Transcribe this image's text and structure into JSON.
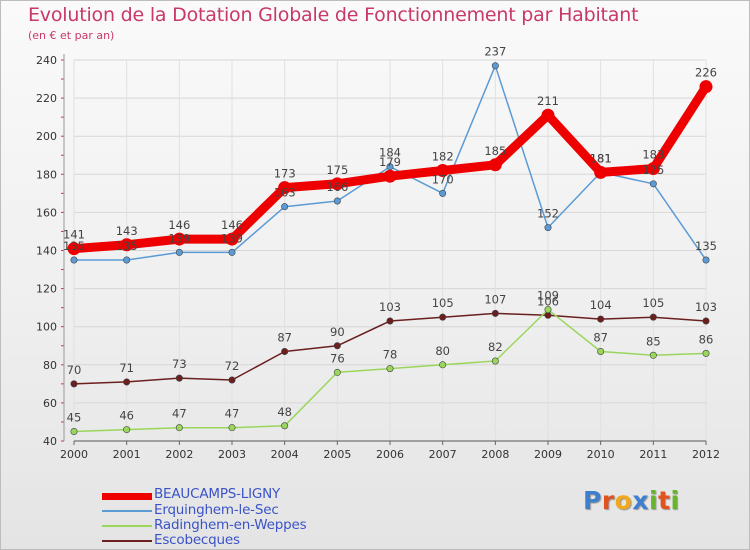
{
  "chart_data": {
    "type": "line",
    "title": "Evolution de la Dotation Globale de Fonctionnement par Habitant",
    "subtitle": "(en € et par an)",
    "xlabel": "",
    "ylabel": "",
    "x": [
      "2000",
      "2001",
      "2002",
      "2003",
      "2004",
      "2005",
      "2006",
      "2007",
      "2008",
      "2009",
      "2010",
      "2011",
      "2012"
    ],
    "ylim": [
      40,
      240
    ],
    "yticks": [
      40,
      60,
      80,
      100,
      120,
      140,
      160,
      180,
      200,
      220,
      240
    ],
    "grid": true,
    "legend_position": "bottom-left",
    "series": [
      {
        "name": "Escobecques",
        "color": "#6b1f1f",
        "values": [
          70,
          71,
          73,
          72,
          87,
          90,
          103,
          105,
          107,
          106,
          104,
          105,
          103
        ],
        "labels": [
          "70",
          "71",
          "73",
          "72",
          "87",
          "90",
          "103",
          "105",
          "107",
          "106",
          "104",
          "105",
          "103"
        ]
      },
      {
        "name": "Radinghem-en-Weppes",
        "color": "#9ad65c",
        "values": [
          45,
          46,
          47,
          47,
          48,
          76,
          78,
          80,
          82,
          109,
          87,
          85,
          86
        ],
        "labels": [
          "45",
          "46",
          "47",
          "47",
          "48",
          "76",
          "78",
          "80",
          "82",
          "109",
          "87",
          "85",
          "86"
        ]
      },
      {
        "name": "Erquinghem-le-Sec",
        "color": "#5b9bd5",
        "values": [
          135,
          135,
          139,
          139,
          163,
          166,
          184,
          170,
          237,
          152,
          181,
          175,
          135
        ],
        "labels": [
          "135",
          "135",
          "139",
          "139",
          "163",
          "166",
          "184",
          "170",
          "237",
          "152",
          "181",
          "175",
          "135"
        ]
      },
      {
        "name": "BEAUCAMPS-LIGNY",
        "color": "#ee0000",
        "values": [
          141,
          143,
          146,
          146,
          173,
          175,
          179,
          182,
          185,
          211,
          181,
          183,
          226
        ],
        "labels": [
          "141",
          "143",
          "146",
          "146",
          "173",
          "175",
          "179",
          "182",
          "185",
          "211",
          "181",
          "183",
          "226"
        ]
      }
    ]
  },
  "legend": {
    "items": [
      {
        "label": "BEAUCAMPS-LIGNY",
        "color": "#ee0000"
      },
      {
        "label": "Erquinghem-le-Sec",
        "color": "#5b9bd5"
      },
      {
        "label": "Radinghem-en-Weppes",
        "color": "#9ad65c"
      },
      {
        "label": "Escobecques",
        "color": "#6b1f1f"
      }
    ]
  },
  "logo": {
    "text": "Proxiti",
    "letters": [
      {
        "ch": "P",
        "color": "#3f7fd0"
      },
      {
        "ch": "r",
        "color": "#e0531f"
      },
      {
        "ch": "o",
        "color": "#f2a81d"
      },
      {
        "ch": "x",
        "color": "#3f7fd0"
      },
      {
        "ch": "i",
        "color": "#6ab42d"
      },
      {
        "ch": "t",
        "color": "#e0531f"
      },
      {
        "ch": "i",
        "color": "#6ab42d"
      }
    ]
  }
}
